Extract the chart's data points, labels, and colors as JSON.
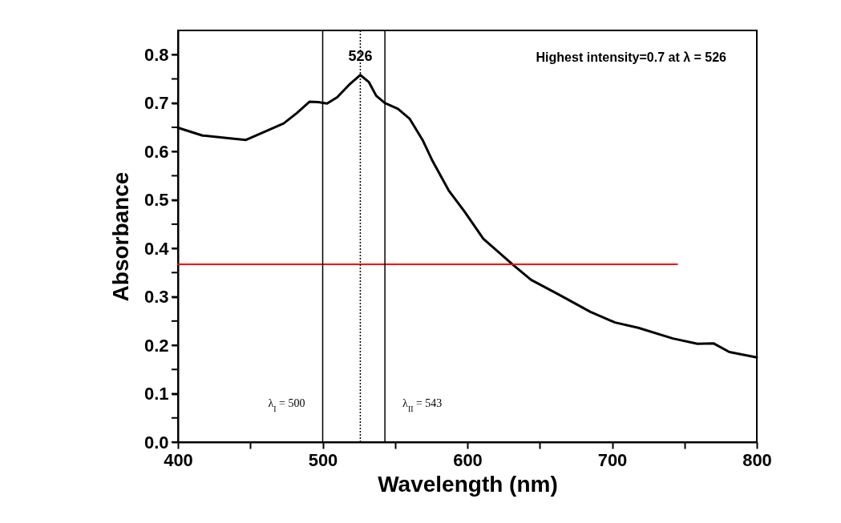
{
  "chart_data": {
    "type": "line",
    "xlabel": "Wavelength (nm)",
    "ylabel": "Absorbance",
    "xlim": [
      400,
      800
    ],
    "ylim": [
      0,
      0.85
    ],
    "xticks": [
      400,
      {
        "value": 450,
        "label": null
      },
      500,
      {
        "value": 550,
        "label": null
      },
      600,
      {
        "value": 650,
        "label": null
      },
      700,
      {
        "value": 750,
        "label": null
      },
      800
    ],
    "yticks": [
      {
        "value": 0,
        "label": "0.0"
      },
      {
        "value": 0.05,
        "label": null
      },
      0.1,
      {
        "value": 0.15,
        "label": null
      },
      0.2,
      {
        "value": 0.25,
        "label": null
      },
      0.3,
      {
        "value": 0.35,
        "label": null
      },
      0.4,
      {
        "value": 0.45,
        "label": null
      },
      0.5,
      {
        "value": 0.55,
        "label": null
      },
      0.6,
      {
        "value": 0.65,
        "label": null
      },
      0.7,
      {
        "value": 0.75,
        "label": null
      },
      0.8
    ],
    "grid": false,
    "marker": "none",
    "line_style": "solid",
    "series": [
      {
        "color": "#000000",
        "x": [
          400,
          417,
          436,
          447,
          454,
          473,
          482,
          491,
          497,
          503,
          510,
          519,
          526,
          532,
          537,
          543,
          552,
          560,
          569,
          576,
          587,
          598,
          611,
          632,
          644,
          663,
          685,
          702,
          718,
          742,
          759,
          770,
          781,
          800
        ],
        "values": [
          0.649,
          0.633,
          0.627,
          0.624,
          0.633,
          0.658,
          0.679,
          0.703,
          0.702,
          0.699,
          0.712,
          0.74,
          0.758,
          0.743,
          0.715,
          0.7,
          0.688,
          0.668,
          0.624,
          0.58,
          0.52,
          0.476,
          0.42,
          0.365,
          0.335,
          0.305,
          0.269,
          0.247,
          0.236,
          0.214,
          0.203,
          0.204,
          0.186,
          0.175
        ]
      },
      {
        "type": "line",
        "color": "#ff0000",
        "x": [
          400,
          745
        ],
        "values": [
          0.367,
          0.367
        ]
      }
    ],
    "ref_lines": [
      {
        "axis": "x",
        "value": 500,
        "label": "λ$_{I}$ = 500",
        "color": "#000000",
        "line_style": "solid"
      },
      {
        "axis": "x",
        "value": 526,
        "label": null,
        "color": "#000000",
        "line_style": "dotted"
      },
      {
        "axis": "x",
        "value": 543,
        "label": "λ$_{II}$ = 543",
        "color": "#000000",
        "line_style": "solid"
      }
    ],
    "annotations": [
      {
        "text": "526",
        "x": 526,
        "y": 0.758
      },
      "Highest intensity=0.7 at λ = 526"
    ]
  }
}
